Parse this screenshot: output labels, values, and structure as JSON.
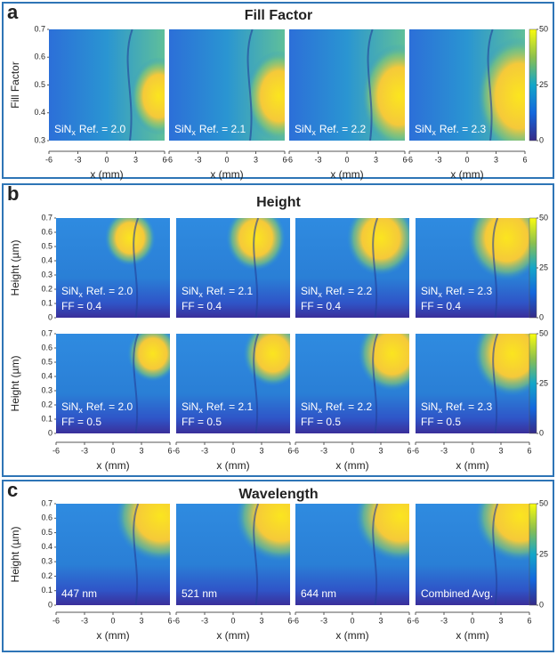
{
  "panels": [
    {
      "letter": "a",
      "title": "Fill Factor",
      "ylabel": "Fill Factor",
      "xlabel": "x (mm)",
      "xticks": [
        -6,
        -3,
        0,
        3,
        6
      ],
      "yticks": [
        0.3,
        0.4,
        0.5,
        0.6,
        0.7
      ],
      "cbticks": [
        0,
        25,
        50
      ],
      "rows": [
        [
          {
            "lines": [
              {
                "main": "SiN",
                "sub": "x",
                "rest": "Ref. = 2.0"
              }
            ]
          },
          {
            "lines": [
              {
                "main": "SiN",
                "sub": "x",
                "rest": "Ref. = 2.1"
              }
            ]
          },
          {
            "lines": [
              {
                "main": "SiN",
                "sub": "x",
                "rest": "Ref. = 2.2"
              }
            ]
          },
          {
            "lines": [
              {
                "main": "SiN",
                "sub": "x",
                "rest": "Ref. = 2.3"
              }
            ]
          }
        ]
      ]
    },
    {
      "letter": "b",
      "title": "Height",
      "ylabel": "Height (µm)",
      "xlabel": "x (mm)",
      "xticks": [
        -6,
        -3,
        0,
        3,
        6
      ],
      "yticks": [
        0,
        0.1,
        0.2,
        0.3,
        0.4,
        0.5,
        0.6,
        0.7
      ],
      "cbticks": [
        0,
        25,
        50
      ],
      "rows": [
        [
          {
            "lines": [
              {
                "main": "SiN",
                "sub": "x",
                "rest": "Ref. = 2.0"
              },
              {
                "text": "FF = 0.4"
              }
            ]
          },
          {
            "lines": [
              {
                "main": "SiN",
                "sub": "x",
                "rest": "Ref. = 2.1"
              },
              {
                "text": "FF = 0.4"
              }
            ]
          },
          {
            "lines": [
              {
                "main": "SiN",
                "sub": "x",
                "rest": "Ref. = 2.2"
              },
              {
                "text": "FF = 0.4"
              }
            ]
          },
          {
            "lines": [
              {
                "main": "SiN",
                "sub": "x",
                "rest": "Ref. = 2.3"
              },
              {
                "text": "FF = 0.4"
              }
            ]
          }
        ],
        [
          {
            "lines": [
              {
                "main": "SiN",
                "sub": "x",
                "rest": "Ref. = 2.0"
              },
              {
                "text": "FF = 0.5"
              }
            ]
          },
          {
            "lines": [
              {
                "main": "SiN",
                "sub": "x",
                "rest": "Ref. = 2.1"
              },
              {
                "text": "FF = 0.5"
              }
            ]
          },
          {
            "lines": [
              {
                "main": "SiN",
                "sub": "x",
                "rest": "Ref. = 2.2"
              },
              {
                "text": "FF = 0.5"
              }
            ]
          },
          {
            "lines": [
              {
                "main": "SiN",
                "sub": "x",
                "rest": "Ref. = 2.3"
              },
              {
                "text": "FF = 0.5"
              }
            ]
          }
        ]
      ]
    },
    {
      "letter": "c",
      "title": "Wavelength",
      "ylabel": "Height (µm)",
      "xlabel": "x (mm)",
      "xticks": [
        -6,
        -3,
        0,
        3,
        6
      ],
      "yticks": [
        0,
        0.1,
        0.2,
        0.3,
        0.4,
        0.5,
        0.6,
        0.7
      ],
      "cbticks": [
        0,
        25,
        50
      ],
      "rows": [
        [
          {
            "lines": [
              {
                "text": "447 nm"
              }
            ]
          },
          {
            "lines": [
              {
                "text": "521 nm"
              }
            ]
          },
          {
            "lines": [
              {
                "text": "644 nm"
              }
            ]
          },
          {
            "lines": [
              {
                "text": "Combined Avg."
              }
            ]
          }
        ]
      ]
    }
  ]
}
